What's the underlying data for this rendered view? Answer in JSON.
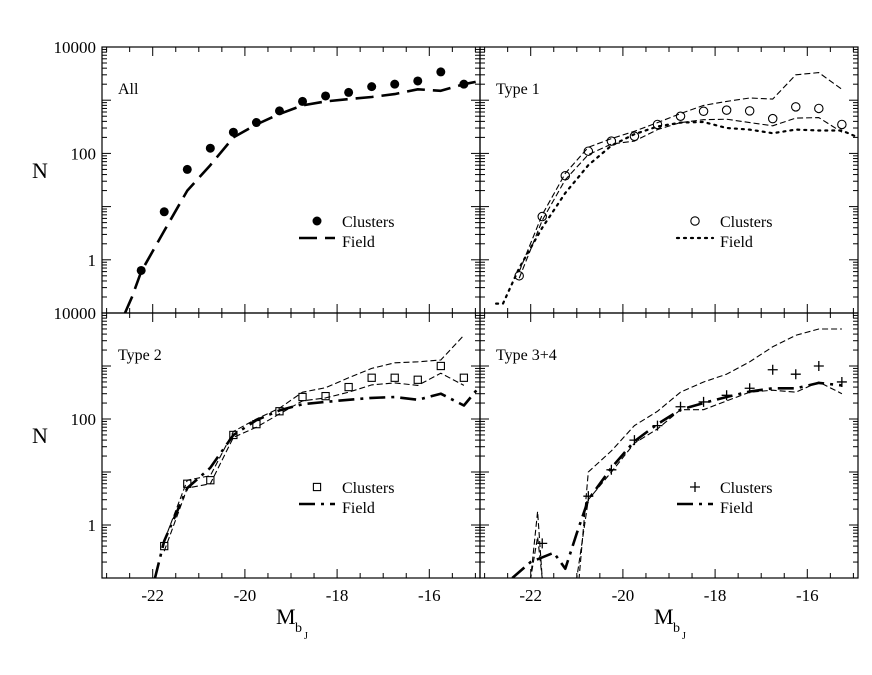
{
  "figure": {
    "ylabel": "N",
    "xlabel_main": "M",
    "xlabel_sub": "b",
    "xlabel_subsub": "J"
  },
  "chart_data": [
    {
      "type": "line",
      "panel_label": "All",
      "xlim": [
        -23.1,
        -14.9
      ],
      "ylim_log": [
        0.1,
        10000
      ],
      "y_scale": "log",
      "x_ticks": [
        -22,
        -20,
        -18,
        -16
      ],
      "x_tick_labels": [
        "",
        "",
        "",
        ""
      ],
      "y_ticks": [
        1,
        100,
        10000
      ],
      "y_tick_labels": [
        "1",
        "100",
        "10000"
      ],
      "legend": {
        "placement": "lower-right",
        "entries": [
          {
            "label": "Clusters",
            "marker": "filled-circle"
          },
          {
            "label": "Field",
            "line": "long-dash"
          }
        ]
      },
      "series": [
        {
          "name": "Clusters",
          "style": "filled-circle",
          "x": [
            -22.25,
            -21.75,
            -21.25,
            -20.75,
            -20.25,
            -19.75,
            -19.25,
            -18.75,
            -18.25,
            -17.75,
            -17.25,
            -16.75,
            -16.25,
            -15.75,
            -15.25
          ],
          "y": [
            0.63,
            8,
            50,
            125,
            250,
            380,
            630,
            950,
            1200,
            1400,
            1800,
            2000,
            2300,
            3400,
            2000
          ]
        },
        {
          "name": "Field",
          "style": "long-dash",
          "x": [
            -22.6,
            -22.45,
            -22.25,
            -21.75,
            -21.25,
            -20.75,
            -20.25,
            -19.75,
            -19.25,
            -18.75,
            -18.25,
            -17.75,
            -17.25,
            -16.75,
            -16.25,
            -15.75,
            -15.25,
            -14.9
          ],
          "y": [
            0.1,
            0.2,
            0.6,
            3.5,
            20,
            60,
            200,
            350,
            550,
            800,
            950,
            1050,
            1150,
            1300,
            1600,
            1500,
            2000,
            2300
          ]
        }
      ]
    },
    {
      "type": "line",
      "panel_label": "Type 1",
      "xlim": [
        -23.1,
        -14.9
      ],
      "ylim_log": [
        0.1,
        10000
      ],
      "y_scale": "log",
      "x_ticks": [
        -22,
        -20,
        -18,
        -16
      ],
      "x_tick_labels": [
        "",
        "",
        "",
        ""
      ],
      "y_ticks": [
        1,
        100,
        10000
      ],
      "y_tick_labels": [
        "",
        "",
        ""
      ],
      "legend": {
        "placement": "lower-right",
        "entries": [
          {
            "label": "Clusters",
            "marker": "open-circle"
          },
          {
            "label": "Field",
            "line": "dotted"
          }
        ]
      },
      "series": [
        {
          "name": "Clusters",
          "style": "open-circle",
          "x": [
            -22.25,
            -21.75,
            -21.25,
            -20.75,
            -20.25,
            -19.75,
            -19.25,
            -18.75,
            -18.25,
            -17.75,
            -17.25,
            -16.75,
            -16.25,
            -15.75,
            -15.25
          ],
          "y": [
            0.5,
            6.5,
            38,
            110,
            170,
            210,
            350,
            500,
            620,
            650,
            630,
            450,
            750,
            700,
            350
          ]
        },
        {
          "name": "Field",
          "style": "dotted",
          "x": [
            -22.75,
            -22.6,
            -22.25,
            -21.75,
            -21.25,
            -20.75,
            -20.25,
            -19.75,
            -19.25,
            -18.75,
            -18.25,
            -17.75,
            -17.25,
            -16.75,
            -16.25,
            -15.75,
            -15.25,
            -14.9
          ],
          "y": [
            0.15,
            0.15,
            0.7,
            4,
            18,
            60,
            140,
            230,
            320,
            380,
            390,
            300,
            280,
            240,
            280,
            270,
            270,
            200
          ]
        },
        {
          "style": "thin-dash",
          "x": [
            -22.25,
            -21.75,
            -21.25,
            -20.75,
            -20.25,
            -19.75,
            -19.25,
            -18.75,
            -18.25,
            -17.75,
            -17.25,
            -16.75,
            -16.25,
            -15.75,
            -15.25
          ],
          "y": [
            0.6,
            7,
            42,
            130,
            190,
            260,
            380,
            560,
            800,
            950,
            1100,
            1050,
            3000,
            3300,
            1600
          ]
        },
        {
          "style": "thin-dash",
          "x": [
            -22.25,
            -21.75,
            -21.25,
            -20.75,
            -20.25,
            -19.75,
            -19.25,
            -18.75,
            -18.25,
            -17.75,
            -17.25,
            -16.75,
            -16.25,
            -15.75,
            -15.25
          ],
          "y": [
            0.45,
            5.5,
            32,
            95,
            150,
            170,
            280,
            380,
            430,
            440,
            380,
            330,
            460,
            470,
            250
          ]
        }
      ]
    },
    {
      "type": "line",
      "panel_label": "Type 2",
      "xlim": [
        -23.1,
        -14.9
      ],
      "ylim_log": [
        0.1,
        10000
      ],
      "y_scale": "log",
      "x_ticks": [
        -22,
        -20,
        -18,
        -16
      ],
      "x_tick_labels": [
        "-22",
        "-20",
        "-18",
        "-16"
      ],
      "y_ticks": [
        1,
        100,
        10000
      ],
      "y_tick_labels": [
        "1",
        "100",
        "10000"
      ],
      "legend": {
        "placement": "lower-right",
        "entries": [
          {
            "label": "Clusters",
            "marker": "open-square"
          },
          {
            "label": "Field",
            "line": "dash-dot"
          }
        ]
      },
      "series": [
        {
          "name": "Clusters",
          "style": "open-square",
          "x": [
            -21.75,
            -21.25,
            -20.75,
            -20.25,
            -19.75,
            -19.25,
            -18.75,
            -18.25,
            -17.75,
            -17.25,
            -16.75,
            -16.25,
            -15.75,
            -15.25
          ],
          "y": [
            0.4,
            6,
            7,
            50,
            80,
            140,
            260,
            270,
            400,
            600,
            600,
            550,
            1000,
            600
          ]
        },
        {
          "name": "Field",
          "style": "dash-dot",
          "x": [
            -21.95,
            -21.75,
            -21.25,
            -20.75,
            -20.25,
            -19.75,
            -19.25,
            -18.75,
            -18.25,
            -17.75,
            -17.25,
            -16.75,
            -16.25,
            -15.75,
            -15.25,
            -14.9
          ],
          "y": [
            0.1,
            0.5,
            5,
            12,
            50,
            95,
            145,
            190,
            210,
            230,
            250,
            260,
            230,
            300,
            180,
            420
          ]
        },
        {
          "style": "thin-dash",
          "x": [
            -21.75,
            -21.25,
            -20.75,
            -20.25,
            -19.75,
            -19.25,
            -18.75,
            -18.25,
            -17.75,
            -17.25,
            -16.75,
            -16.25,
            -15.75,
            -15.25
          ],
          "y": [
            0.5,
            7,
            8.5,
            58,
            100,
            160,
            320,
            390,
            600,
            900,
            1150,
            1200,
            1300,
            3800
          ]
        },
        {
          "style": "thin-dash",
          "x": [
            -21.75,
            -21.25,
            -20.75,
            -20.25,
            -19.75,
            -19.25,
            -18.75,
            -18.25,
            -17.75,
            -17.25,
            -16.75,
            -16.25,
            -15.75,
            -15.25
          ],
          "y": [
            0.32,
            5,
            6,
            45,
            70,
            125,
            220,
            250,
            320,
            440,
            480,
            430,
            730,
            430
          ]
        }
      ]
    },
    {
      "type": "line",
      "panel_label": "Type 3+4",
      "xlim": [
        -23.1,
        -14.9
      ],
      "ylim_log": [
        0.1,
        10000
      ],
      "y_scale": "log",
      "x_ticks": [
        -22,
        -20,
        -18,
        -16
      ],
      "x_tick_labels": [
        "-22",
        "-20",
        "-18",
        "-16"
      ],
      "y_ticks": [
        1,
        100,
        10000
      ],
      "y_tick_labels": [
        "",
        "",
        ""
      ],
      "legend": {
        "placement": "lower-right",
        "entries": [
          {
            "label": "Clusters",
            "marker": "plus"
          },
          {
            "label": "Field",
            "line": "dash-dot"
          }
        ]
      },
      "series": [
        {
          "name": "Clusters",
          "style": "plus",
          "x": [
            -21.75,
            -20.75,
            -20.25,
            -19.75,
            -19.25,
            -18.75,
            -18.25,
            -17.75,
            -17.25,
            -16.75,
            -16.25,
            -15.75,
            -15.25
          ],
          "y": [
            0.45,
            3.5,
            11,
            40,
            75,
            170,
            210,
            280,
            380,
            850,
            700,
            1000,
            500
          ]
        },
        {
          "name": "Field",
          "style": "dash-dot",
          "x": [
            -22.4,
            -22.0,
            -21.5,
            -21.25,
            -21.0,
            -20.75,
            -20.25,
            -19.75,
            -19.25,
            -18.75,
            -18.25,
            -17.75,
            -17.25,
            -16.75,
            -16.25,
            -15.75,
            -15.25
          ],
          "y": [
            0.1,
            0.2,
            0.3,
            0.15,
            0.7,
            3,
            12,
            38,
            80,
            150,
            200,
            260,
            330,
            380,
            380,
            480,
            430
          ]
        },
        {
          "style": "thin-dash",
          "x": [
            -22.25,
            -22.0,
            -21.85,
            -21.75,
            -21.6,
            -21.2,
            -20.95,
            -20.75,
            -20.25,
            -19.75,
            -19.25,
            -18.75,
            -18.25,
            -17.75,
            -17.25,
            -16.75,
            -16.25,
            -15.75,
            -15.25
          ],
          "y": [
            0.1,
            0.1,
            1.8,
            0.1,
            0.1,
            0.1,
            0.1,
            10,
            25,
            75,
            140,
            320,
            500,
            700,
            1200,
            2300,
            3800,
            5000,
            5000
          ]
        },
        {
          "style": "thin-dash",
          "x": [
            -22.25,
            -22.0,
            -21.85,
            -21.75,
            -21.6,
            -21.2,
            -21.0,
            -20.75,
            -20.25,
            -19.75,
            -19.25,
            -18.75,
            -18.25,
            -17.75,
            -17.25,
            -16.75,
            -16.25,
            -15.75,
            -15.25
          ],
          "y": [
            0.1,
            0.1,
            0.6,
            0.1,
            0.1,
            0.1,
            0.1,
            3,
            10,
            35,
            65,
            150,
            150,
            220,
            320,
            350,
            320,
            500,
            300
          ]
        }
      ]
    }
  ]
}
